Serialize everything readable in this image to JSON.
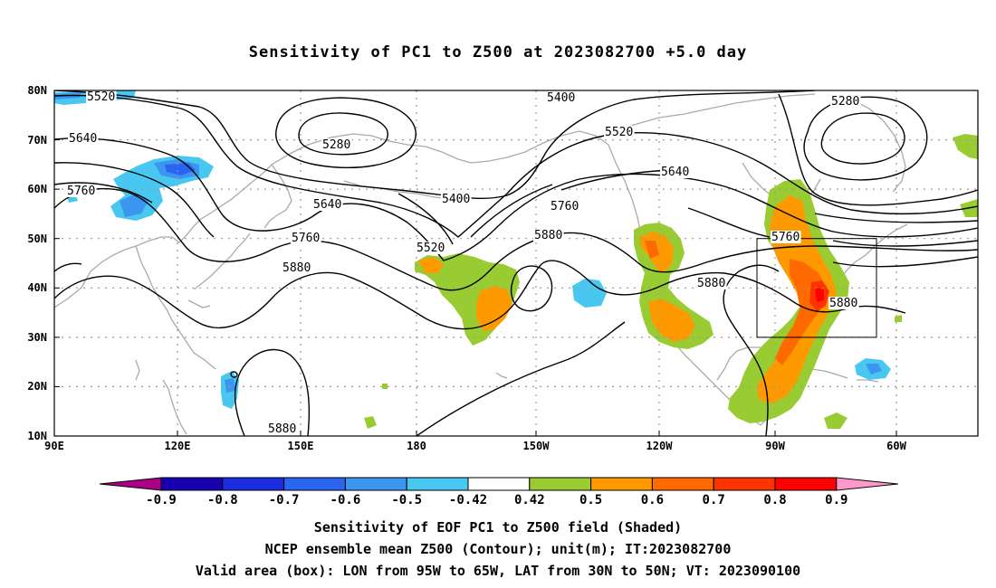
{
  "title": "Sensitivity of PC1 to Z500 at 2023082700 +5.0 day",
  "map": {
    "lat_labels": [
      "80N",
      "70N",
      "60N",
      "50N",
      "40N",
      "30N",
      "20N",
      "10N"
    ],
    "lon_labels": [
      "90E",
      "120E",
      "150E",
      "180",
      "150W",
      "120W",
      "90W",
      "60W"
    ],
    "projection": "cylindrical lat-lon",
    "extent": {
      "lon_west": "90E",
      "lon_east": "45W",
      "lat_south": "10N",
      "lat_north": "80N"
    }
  },
  "contour_labels": [
    "5520",
    "5400",
    "5280",
    "5280",
    "5640",
    "5520",
    "5760",
    "5640",
    "5400",
    "5640",
    "5760",
    "5760",
    "5760",
    "5880",
    "5520",
    "5880",
    "5880",
    "5880",
    "5880"
  ],
  "valid_box": {
    "lon_from": "95W",
    "lon_to": "65W",
    "lat_from": "30N",
    "lat_to": "50N"
  },
  "colorbar": {
    "labels": [
      "-0.9",
      "-0.8",
      "-0.7",
      "-0.6",
      "-0.5",
      "-0.42",
      "0.42",
      "0.5",
      "0.6",
      "0.7",
      "0.8",
      "0.9"
    ],
    "colors": [
      "#aa0088",
      "#1800b0",
      "#1a2ee0",
      "#2a64f0",
      "#3c96f0",
      "#48c8f0",
      "#ffffff",
      "#99cc33",
      "#ff9900",
      "#ff6a00",
      "#ff3300",
      "#ff0000",
      "#ff99cc"
    ]
  },
  "captions": {
    "line1": "Sensitivity of EOF PC1 to Z500 field (Shaded)",
    "line2": "NCEP ensemble mean Z500 (Contour); unit(m); IT:2023082700",
    "line3": "Valid area (box): LON from 95W to 65W, LAT from 30N to 50N; VT: 2023090100"
  }
}
